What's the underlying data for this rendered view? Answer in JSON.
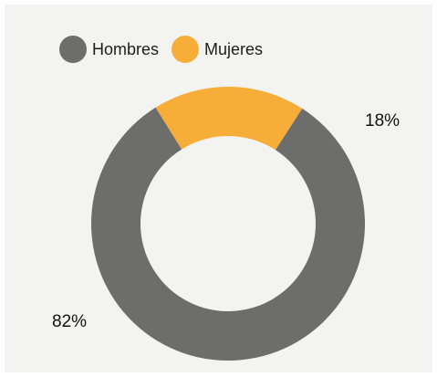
{
  "chart_data": {
    "type": "pie",
    "donut": true,
    "title": "",
    "legend_position": "top-left",
    "series": [
      {
        "name": "Hombres",
        "value": 82,
        "label": "82%",
        "color": "#6d6d6c"
      },
      {
        "name": "Mujeres",
        "value": 18,
        "label": "18%",
        "color": "#f6ae39"
      }
    ]
  },
  "legend": {
    "hombres": "Hombres",
    "mujeres": "Mujeres"
  },
  "labels": {
    "hombres_pct": "82%",
    "mujeres_pct": "18%"
  },
  "colors": {
    "background": "#f3f3f2",
    "hombres": "#6d6d6c",
    "mujeres": "#f6ae39"
  }
}
